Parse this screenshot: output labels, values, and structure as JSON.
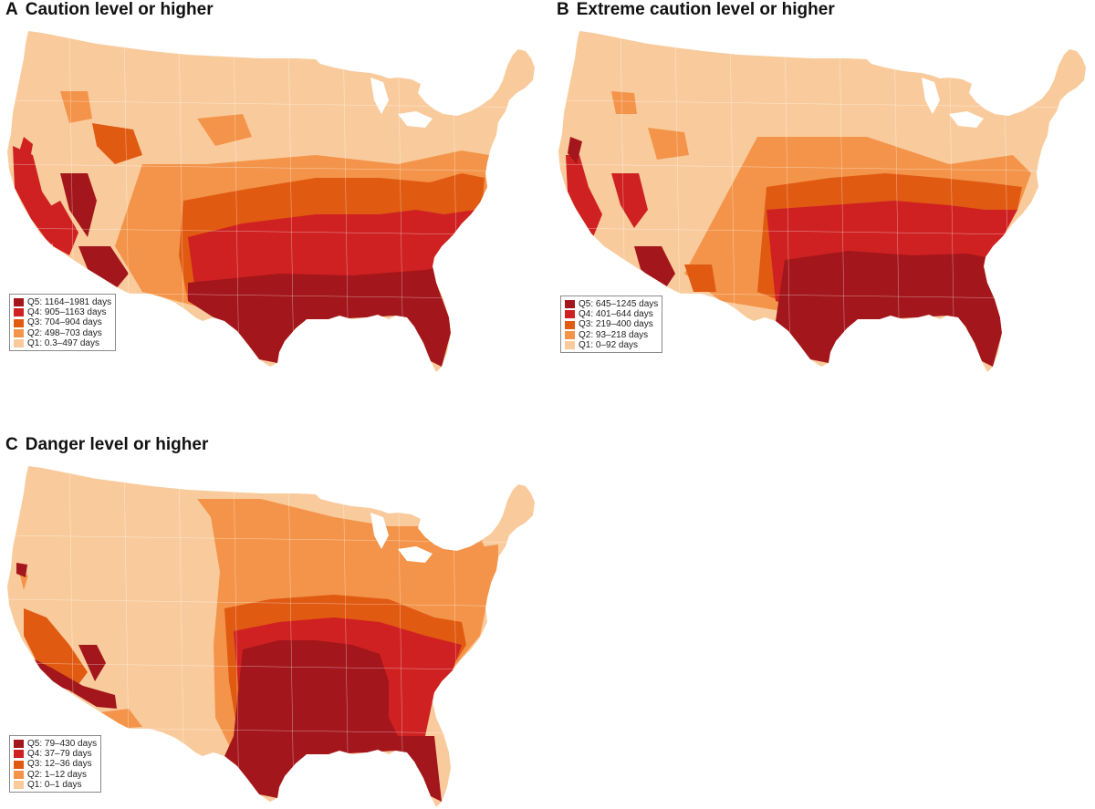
{
  "colors": {
    "q5": "#a3161b",
    "q4": "#cf2121",
    "q3": "#e05a12",
    "q2": "#f3944a",
    "q1": "#f9cb9c",
    "border": "#ffffff"
  },
  "panels": [
    {
      "letter": "A",
      "title": "Caution level or higher",
      "legend": [
        {
          "q": "q5",
          "label": "Q5: 1164–1981 days"
        },
        {
          "q": "q4",
          "label": "Q4: 905–1163 days"
        },
        {
          "q": "q3",
          "label": "Q3: 704–904 days"
        },
        {
          "q": "q2",
          "label": "Q2: 498–703 days"
        },
        {
          "q": "q1",
          "label": "Q1: 0.3–497 days"
        }
      ]
    },
    {
      "letter": "B",
      "title": "Extreme caution level or higher",
      "legend": [
        {
          "q": "q5",
          "label": "Q5: 645–1245 days"
        },
        {
          "q": "q4",
          "label": "Q4: 401–644 days"
        },
        {
          "q": "q3",
          "label": "Q3: 219–400 days"
        },
        {
          "q": "q2",
          "label": "Q2: 93–218 days"
        },
        {
          "q": "q1",
          "label": "Q1: 0–92 days"
        }
      ]
    },
    {
      "letter": "C",
      "title": "Danger level or higher",
      "legend": [
        {
          "q": "q5",
          "label": "Q5: 79–430 days"
        },
        {
          "q": "q4",
          "label": "Q4: 37–79 days"
        },
        {
          "q": "q3",
          "label": "Q3: 12–36 days"
        },
        {
          "q": "q2",
          "label": "Q2: 1–12 days"
        },
        {
          "q": "q1",
          "label": "Q1: 0–1 days"
        }
      ]
    }
  ]
}
